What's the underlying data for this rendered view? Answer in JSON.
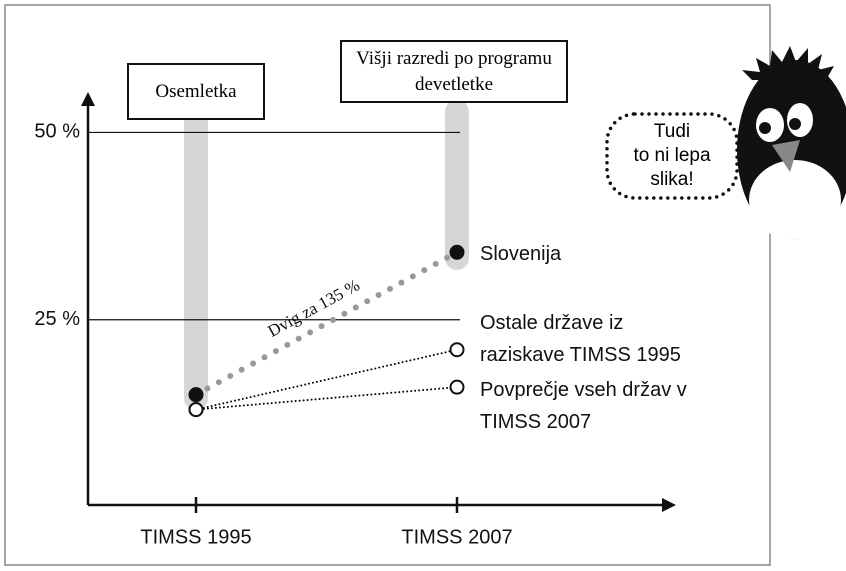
{
  "chart_data": {
    "type": "line",
    "categories": [
      "TIMSS 1995",
      "TIMSS 2007"
    ],
    "ylim": [
      0,
      55
    ],
    "yticks": [
      {
        "value": 25,
        "label": "25 %"
      },
      {
        "value": 50,
        "label": "50 %"
      }
    ],
    "grid": true,
    "column_labels": [
      "Osemletka",
      "Višji razredi po programu devetletke"
    ],
    "annotation": "Dvig za 135 %",
    "callout": [
      "Tudi",
      "to ni lepa",
      "slika!"
    ],
    "series": [
      {
        "name": "Slovenija",
        "color": "#999999",
        "marker": "filled",
        "values": [
          15,
          34
        ]
      },
      {
        "name": "Ostale države iz raziskave TIMSS 1995",
        "color": "#000000",
        "marker": "open",
        "values": [
          13,
          21
        ]
      },
      {
        "name": "Povprečje vseh držav v TIMSS 2007",
        "color": "#000000",
        "marker": "open",
        "values": [
          13,
          16
        ]
      }
    ]
  }
}
